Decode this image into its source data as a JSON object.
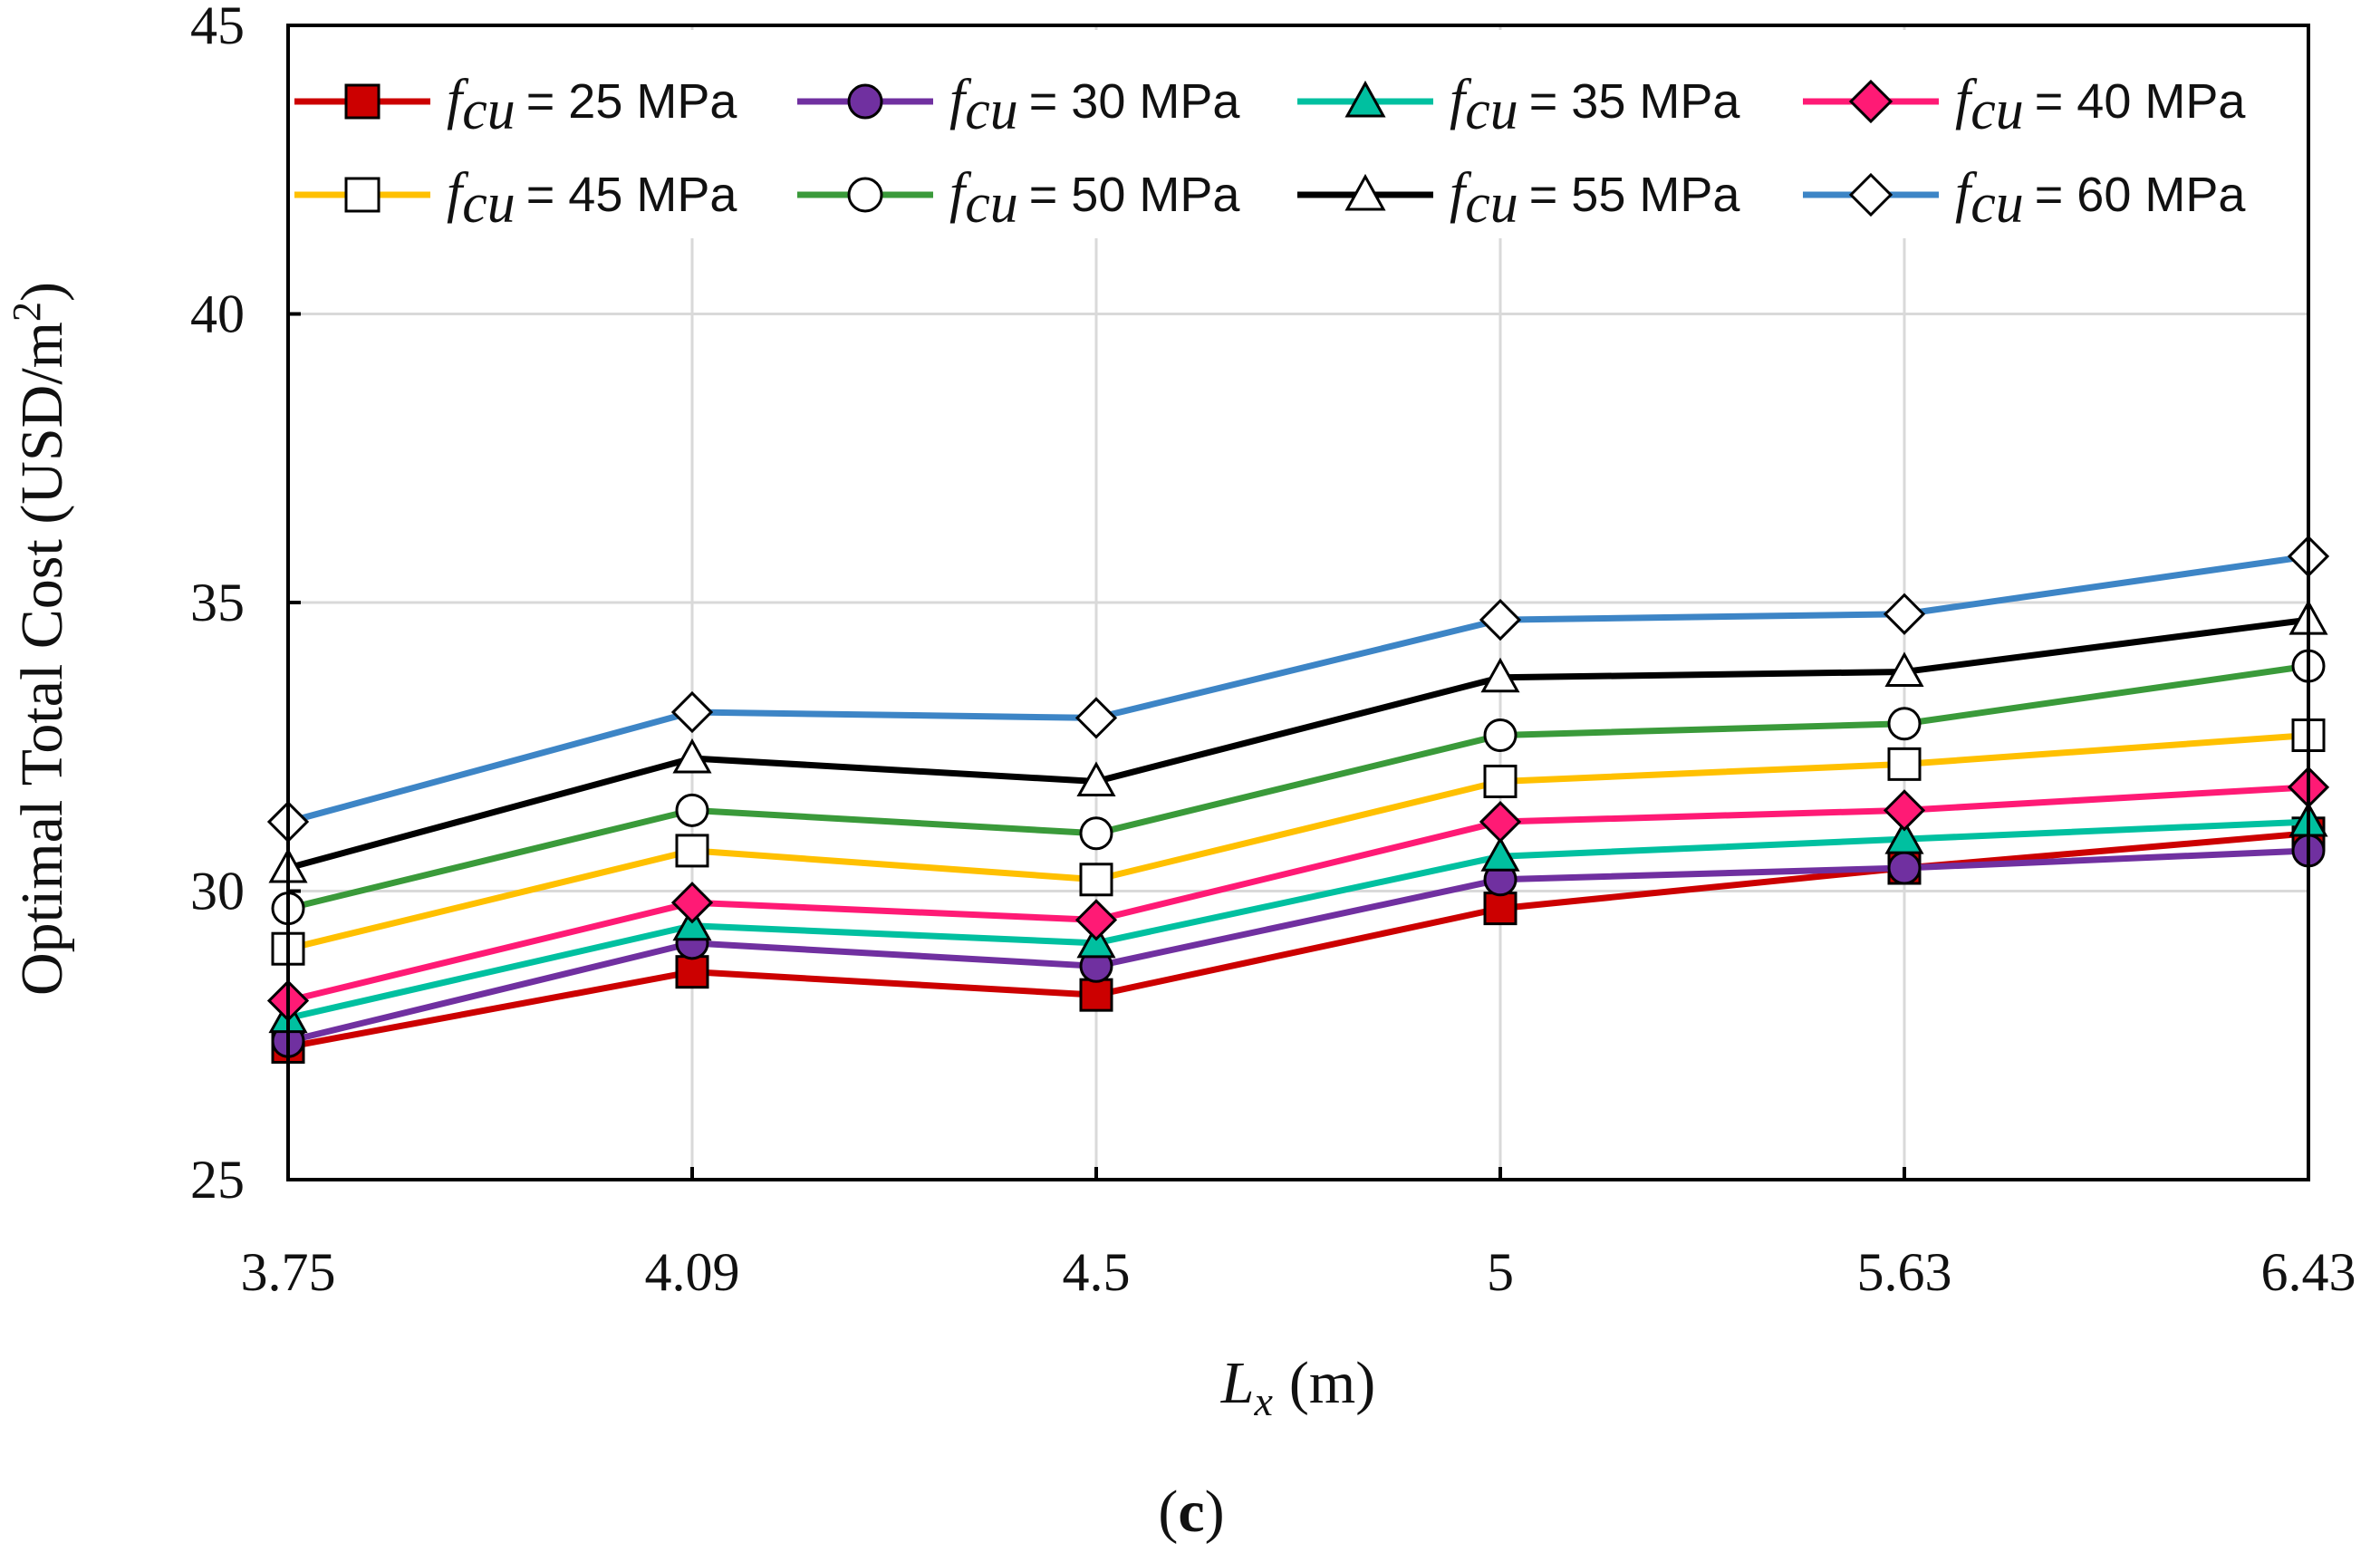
{
  "chart_data": {
    "type": "line",
    "title": "",
    "xlabel_var": "L",
    "xlabel_sub": "x",
    "xlabel_unit": "(m)",
    "ylabel": "Optimal Total Cost (USD/m",
    "ylabel_sup": "2",
    "ylabel_close": ")",
    "caption_open": "(",
    "caption_letter": "c",
    "caption_close": ")",
    "categories": [
      "3.75",
      "4.09",
      "4.5",
      "5",
      "5.63",
      "6.43"
    ],
    "ylim": [
      25,
      45
    ],
    "yticks": [
      "25",
      "30",
      "35",
      "40",
      "45"
    ],
    "grid": true,
    "legend_position": "top",
    "legend_var": "f",
    "legend_sub": "cu",
    "series": [
      {
        "name": "= 25 MPa",
        "color": "#cc0000",
        "marker": "square",
        "filled": true,
        "values": [
          27.3,
          28.6,
          28.2,
          29.7,
          30.4,
          31.0
        ]
      },
      {
        "name": "= 30 MPa",
        "color": "#7030a0",
        "marker": "circle",
        "filled": true,
        "values": [
          27.4,
          29.1,
          28.7,
          30.2,
          30.4,
          30.7
        ]
      },
      {
        "name": "= 35 MPa",
        "color": "#00c0a0",
        "marker": "triangle",
        "filled": true,
        "values": [
          27.8,
          29.4,
          29.1,
          30.6,
          30.9,
          31.2
        ]
      },
      {
        "name": "= 40 MPa",
        "color": "#ff1a75",
        "marker": "diamond",
        "filled": true,
        "values": [
          28.1,
          29.8,
          29.5,
          31.2,
          31.4,
          31.8
        ]
      },
      {
        "name": "= 45 MPa",
        "color": "#ffc000",
        "marker": "square",
        "filled": false,
        "values": [
          29.0,
          30.7,
          30.2,
          31.9,
          32.2,
          32.7
        ]
      },
      {
        "name": "= 50 MPa",
        "color": "#3a9a3a",
        "marker": "circle",
        "filled": false,
        "values": [
          29.7,
          31.4,
          31.0,
          32.7,
          32.9,
          33.9
        ]
      },
      {
        "name": "= 55 MPa",
        "color": "#000000",
        "marker": "triangle",
        "filled": false,
        "values": [
          30.4,
          32.3,
          31.9,
          33.7,
          33.8,
          34.7
        ]
      },
      {
        "name": "= 60 MPa",
        "color": "#3d85c6",
        "marker": "diamond",
        "filled": false,
        "values": [
          31.2,
          33.1,
          33.0,
          34.7,
          34.8,
          35.8
        ]
      }
    ]
  }
}
